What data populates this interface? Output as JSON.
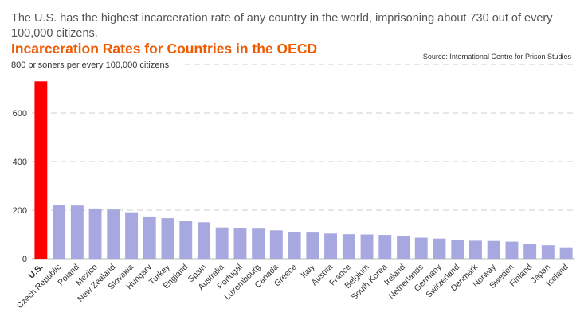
{
  "header": {
    "intro": "The U.S. has the highest incarceration rate of any country in the world, imprisoning about 730 out of every 100,000 citizens.",
    "title": "Incarceration Rates for Countries in the OECD",
    "source": "Source: International Centre for Prison Studies"
  },
  "colors": {
    "highlight": "#ff0000",
    "bar": "#a7a8e0",
    "title": "#f05a00",
    "grid": "#cccccc"
  },
  "chart_data": {
    "type": "bar",
    "title": "Incarceration Rates for Countries in the OECD",
    "ylabel": "800 prisoners per every 100,000 citizens",
    "xlabel": "",
    "ylim": [
      0,
      800
    ],
    "yticks": [
      "0",
      "200",
      "400",
      "600"
    ],
    "grid": true,
    "highlight_category": "U.S.",
    "categories": [
      "U.S.",
      "Czech Republic",
      "Poland",
      "Mexico",
      "New Zealand",
      "Slovakia",
      "Hungary",
      "Turkey",
      "England",
      "Spain",
      "Australia",
      "Portugal",
      "Luxembourg",
      "Canada",
      "Greece",
      "Italy",
      "Austria",
      "France",
      "Belgium",
      "South Korea",
      "Ireland",
      "Netherlands",
      "Germany",
      "Switzerland",
      "Denmark",
      "Norway",
      "Sweden",
      "Finland",
      "Japan",
      "Iceland"
    ],
    "values": [
      730,
      221,
      219,
      207,
      203,
      191,
      174,
      167,
      154,
      150,
      129,
      127,
      124,
      117,
      110,
      108,
      104,
      101,
      100,
      98,
      93,
      87,
      83,
      76,
      74,
      73,
      70,
      59,
      55,
      47
    ]
  }
}
